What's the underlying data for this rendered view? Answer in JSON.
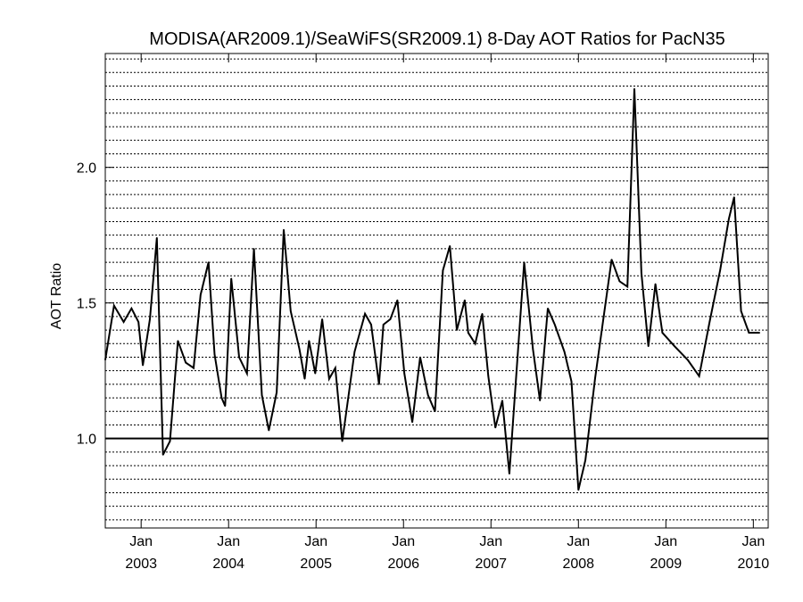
{
  "chart_data": {
    "type": "line",
    "title": "MODISA(AR2009.1)/SeaWiFS(SR2009.1) 8-Day AOT Ratios for PacN35",
    "xlabel": "",
    "ylabel": "AOT Ratio",
    "xlim": [
      2002.59,
      2010.17
    ],
    "ylim": [
      0.67,
      2.42
    ],
    "grid": "horizontal dotted every 0.05",
    "reference_line": 1.0,
    "y_ticks": [
      {
        "value": 1.0,
        "label": "1.0"
      },
      {
        "value": 1.5,
        "label": "1.5"
      },
      {
        "value": 2.0,
        "label": "2.0"
      }
    ],
    "x_ticks": [
      {
        "value": 2003.0,
        "month": "Jan",
        "year": "2003"
      },
      {
        "value": 2004.0,
        "month": "Jan",
        "year": "2004"
      },
      {
        "value": 2005.0,
        "month": "Jan",
        "year": "2005"
      },
      {
        "value": 2006.0,
        "month": "Jan",
        "year": "2006"
      },
      {
        "value": 2007.0,
        "month": "Jan",
        "year": "2007"
      },
      {
        "value": 2008.0,
        "month": "Jan",
        "year": "2008"
      },
      {
        "value": 2009.0,
        "month": "Jan",
        "year": "2009"
      },
      {
        "value": 2010.0,
        "month": "Jan",
        "year": "2010"
      }
    ],
    "series": [
      {
        "values": [
          [
            2002.59,
            1.29
          ],
          [
            2002.69,
            1.49
          ],
          [
            2002.8,
            1.43
          ],
          [
            2002.89,
            1.48
          ],
          [
            2002.97,
            1.43
          ],
          [
            2003.02,
            1.27
          ],
          [
            2003.1,
            1.44
          ],
          [
            2003.18,
            1.74
          ],
          [
            2003.25,
            0.94
          ],
          [
            2003.33,
            0.99
          ],
          [
            2003.42,
            1.36
          ],
          [
            2003.51,
            1.28
          ],
          [
            2003.6,
            1.26
          ],
          [
            2003.68,
            1.53
          ],
          [
            2003.77,
            1.65
          ],
          [
            2003.84,
            1.31
          ],
          [
            2003.92,
            1.15
          ],
          [
            2003.96,
            1.12
          ],
          [
            2004.03,
            1.59
          ],
          [
            2004.12,
            1.3
          ],
          [
            2004.21,
            1.24
          ],
          [
            2004.29,
            1.7
          ],
          [
            2004.38,
            1.16
          ],
          [
            2004.46,
            1.03
          ],
          [
            2004.55,
            1.17
          ],
          [
            2004.63,
            1.77
          ],
          [
            2004.71,
            1.47
          ],
          [
            2004.81,
            1.33
          ],
          [
            2004.87,
            1.22
          ],
          [
            2004.92,
            1.36
          ],
          [
            2004.99,
            1.24
          ],
          [
            2005.07,
            1.44
          ],
          [
            2005.15,
            1.22
          ],
          [
            2005.22,
            1.26
          ],
          [
            2005.3,
            0.99
          ],
          [
            2005.44,
            1.32
          ],
          [
            2005.56,
            1.46
          ],
          [
            2005.63,
            1.42
          ],
          [
            2005.72,
            1.2
          ],
          [
            2005.77,
            1.42
          ],
          [
            2005.85,
            1.44
          ],
          [
            2005.93,
            1.51
          ],
          [
            2006.01,
            1.24
          ],
          [
            2006.1,
            1.06
          ],
          [
            2006.19,
            1.3
          ],
          [
            2006.28,
            1.16
          ],
          [
            2006.36,
            1.1
          ],
          [
            2006.45,
            1.62
          ],
          [
            2006.53,
            1.71
          ],
          [
            2006.61,
            1.4
          ],
          [
            2006.7,
            1.51
          ],
          [
            2006.74,
            1.39
          ],
          [
            2006.82,
            1.35
          ],
          [
            2006.9,
            1.46
          ],
          [
            2006.97,
            1.23
          ],
          [
            2007.05,
            1.04
          ],
          [
            2007.13,
            1.14
          ],
          [
            2007.21,
            0.87
          ],
          [
            2007.38,
            1.65
          ],
          [
            2007.48,
            1.33
          ],
          [
            2007.56,
            1.14
          ],
          [
            2007.65,
            1.48
          ],
          [
            2007.73,
            1.42
          ],
          [
            2007.84,
            1.32
          ],
          [
            2007.92,
            1.21
          ],
          [
            2008.0,
            0.81
          ],
          [
            2008.08,
            0.92
          ],
          [
            2008.19,
            1.22
          ],
          [
            2008.38,
            1.66
          ],
          [
            2008.47,
            1.58
          ],
          [
            2008.56,
            1.56
          ],
          [
            2008.64,
            2.29
          ],
          [
            2008.72,
            1.61
          ],
          [
            2008.8,
            1.34
          ],
          [
            2008.88,
            1.57
          ],
          [
            2008.96,
            1.39
          ],
          [
            2009.1,
            1.34
          ],
          [
            2009.25,
            1.29
          ],
          [
            2009.38,
            1.23
          ],
          [
            2009.5,
            1.43
          ],
          [
            2009.62,
            1.62
          ],
          [
            2009.72,
            1.81
          ],
          [
            2009.78,
            1.89
          ],
          [
            2009.86,
            1.47
          ],
          [
            2009.95,
            1.39
          ],
          [
            2010.07,
            1.39
          ]
        ]
      }
    ]
  },
  "colors": {
    "background": "#ffffff",
    "line": "#000000",
    "grid": "#000000"
  }
}
